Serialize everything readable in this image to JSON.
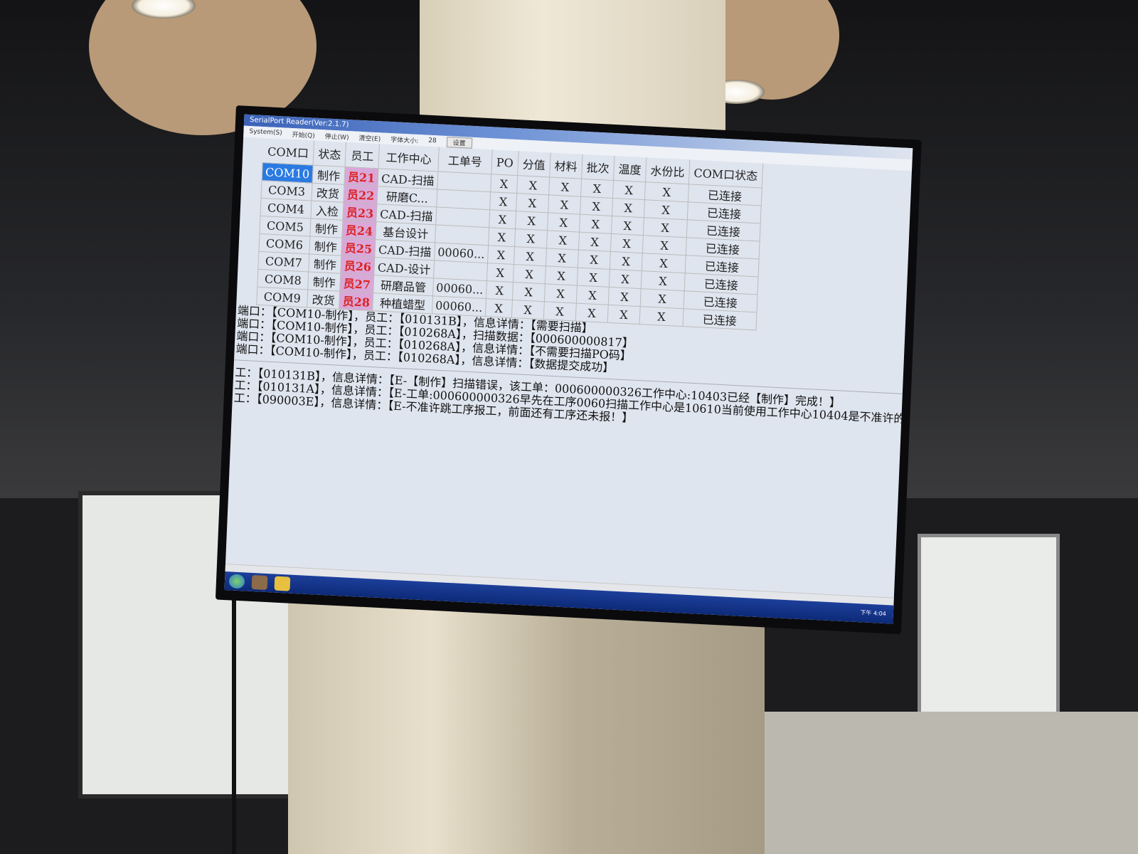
{
  "window": {
    "title": "SerialPort Reader(Ver:2.1.7)"
  },
  "menu": {
    "items": [
      "System(S)",
      "开始(Q)",
      "停止(W)",
      "清空(E)",
      "字体大小:",
      "28"
    ],
    "settings_button": "设置"
  },
  "table": {
    "headers": [
      "COM口",
      "状态",
      "员工",
      "工作中心",
      "工单号",
      "PO",
      "分值",
      "材料",
      "批次",
      "温度",
      "水份比",
      "COM口状态"
    ],
    "rows": [
      [
        "COM10",
        "制作",
        "员21",
        "CAD-扫描",
        "",
        "X",
        "X",
        "X",
        "X",
        "X",
        "X",
        "已连接"
      ],
      [
        "COM3",
        "改货",
        "员22",
        "研磨C...",
        "",
        "X",
        "X",
        "X",
        "X",
        "X",
        "X",
        "已连接"
      ],
      [
        "COM4",
        "入检",
        "员23",
        "CAD-扫描",
        "",
        "X",
        "X",
        "X",
        "X",
        "X",
        "X",
        "已连接"
      ],
      [
        "COM5",
        "制作",
        "员24",
        "基台设计",
        "",
        "X",
        "X",
        "X",
        "X",
        "X",
        "X",
        "已连接"
      ],
      [
        "COM6",
        "制作",
        "员25",
        "CAD-扫描",
        "00060...",
        "X",
        "X",
        "X",
        "X",
        "X",
        "X",
        "已连接"
      ],
      [
        "COM7",
        "制作",
        "员26",
        "CAD-设计",
        "",
        "X",
        "X",
        "X",
        "X",
        "X",
        "X",
        "已连接"
      ],
      [
        "COM8",
        "制作",
        "员27",
        "研磨品管",
        "00060...",
        "X",
        "X",
        "X",
        "X",
        "X",
        "X",
        "已连接"
      ],
      [
        "COM9",
        "改货",
        "员28",
        "种植蜡型",
        "00060...",
        "X",
        "X",
        "X",
        "X",
        "X",
        "X",
        "已连接"
      ]
    ]
  },
  "log_info": [
    "端口：【COM10-制作】，员工：【010131B】，信息详情：【需要扫描】",
    "端口：【COM10-制作】，员工：【010268A】，扫描数据：【000600000817】",
    "端口：【COM10-制作】，员工：【010268A】，信息详情：【不需要扫描PO码】",
    "端口：【COM10-制作】，员工：【010268A】，信息详情：【数据提交成功】"
  ],
  "log_errors": [
    "工：【010131B】，信息详情：【E-【制作】扫描错误，该工单：000600000326工作中心:10403已经【制作】完成！】",
    "工：【010131A】，信息详情：【E-工单:000600000326早先在工序0060扫描工作中心是10610当前使用工作中心10404是不准许的】",
    "工：【090003E】，信息详情：【E-不准许跳工序报工，前面还有工序还未报！】"
  ],
  "taskbar": {
    "icons": [
      "start-orb-icon",
      "app-icon",
      "folder-icon"
    ],
    "time": "下午 4:04"
  },
  "colors": {
    "selection": "#2a7ae2",
    "taskbar": "#0d2a78",
    "error_text": "#111111"
  }
}
